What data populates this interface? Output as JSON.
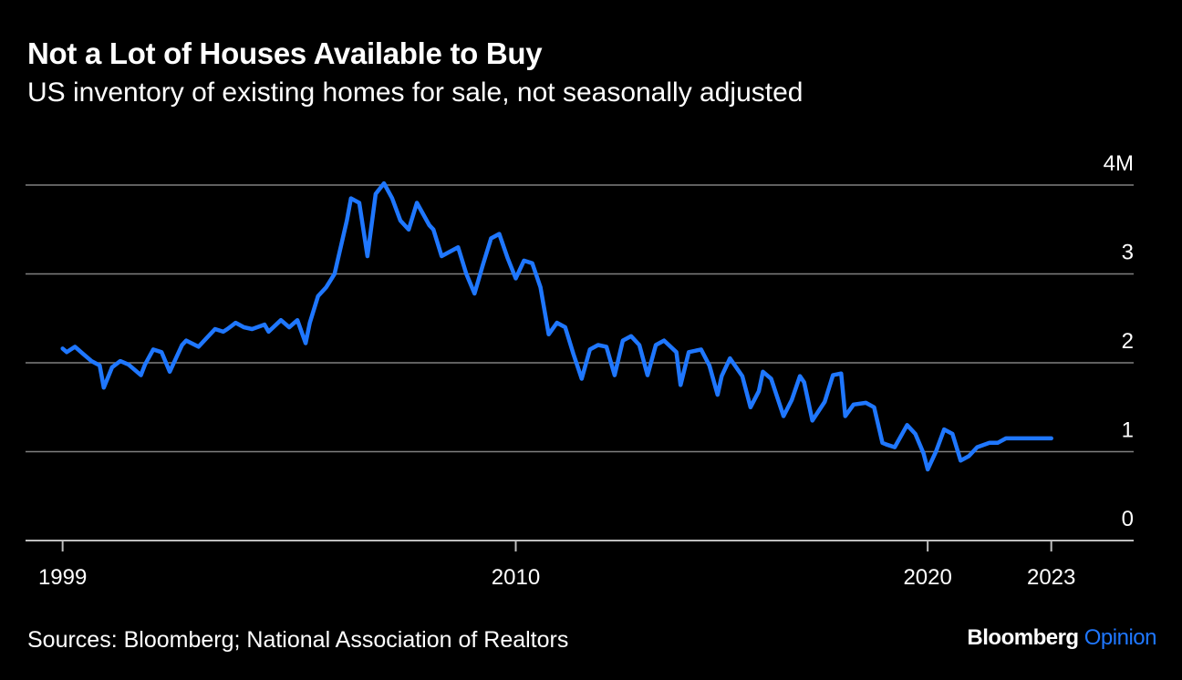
{
  "header": {
    "title": "Not a Lot of Houses Available to Buy",
    "subtitle": "US inventory of existing homes for sale, not seasonally adjusted"
  },
  "footer": {
    "source": "Sources: Bloomberg; National Association of Realtors",
    "brand_main": "Bloomberg",
    "brand_accent": "Opinion"
  },
  "colors": {
    "background": "#000000",
    "line": "#1f77ff",
    "grid": "#808080",
    "text": "#ffffff"
  },
  "chart_data": {
    "type": "line",
    "title": "Not a Lot of Houses Available to Buy",
    "subtitle": "US inventory of existing homes for sale, not seasonally adjusted",
    "xlabel": "",
    "ylabel": "",
    "x_ticks": [
      {
        "value": 1999,
        "label": "1999"
      },
      {
        "value": 2010,
        "label": "2010"
      },
      {
        "value": 2020,
        "label": "2020"
      },
      {
        "value": 2023,
        "label": "2023"
      }
    ],
    "y_ticks": [
      {
        "value": 0,
        "label": "0"
      },
      {
        "value": 1,
        "label": "1"
      },
      {
        "value": 2,
        "label": "2"
      },
      {
        "value": 3,
        "label": "3"
      },
      {
        "value": 4,
        "label": "4M"
      }
    ],
    "xlim": [
      1998.1,
      2025.0
    ],
    "ylim": [
      0,
      4
    ],
    "grid": true,
    "y_axis_position": "right",
    "series": [
      {
        "name": "",
        "color": "#1f77ff",
        "x": [
          1999.0,
          1999.1,
          1999.3,
          1999.5,
          1999.7,
          1999.9,
          2000.0,
          2000.2,
          2000.4,
          2000.6,
          2000.9,
          2001.0,
          2001.2,
          2001.4,
          2001.6,
          2001.9,
          2002.0,
          2002.3,
          2002.5,
          2002.7,
          2002.9,
          2003.0,
          2003.2,
          2003.4,
          2003.6,
          2003.9,
          2004.0,
          2004.3,
          2004.5,
          2004.7,
          2004.9,
          2005.0,
          2005.2,
          2005.4,
          2005.6,
          2005.9,
          2006.0,
          2006.2,
          2006.4,
          2006.6,
          2006.8,
          2007.0,
          2007.2,
          2007.4,
          2007.6,
          2007.9,
          2008.0,
          2008.2,
          2008.4,
          2008.6,
          2008.8,
          2009.0,
          2009.2,
          2009.4,
          2009.6,
          2009.8,
          2010.0,
          2010.2,
          2010.4,
          2010.6,
          2010.8,
          2011.0,
          2011.2,
          2011.4,
          2011.6,
          2011.8,
          2012.0,
          2012.2,
          2012.4,
          2012.6,
          2012.8,
          2013.0,
          2013.2,
          2013.4,
          2013.6,
          2013.9,
          2014.0,
          2014.2,
          2014.5,
          2014.7,
          2014.9,
          2015.0,
          2015.2,
          2015.5,
          2015.7,
          2015.9,
          2016.0,
          2016.2,
          2016.5,
          2016.7,
          2016.9,
          2017.0,
          2017.2,
          2017.5,
          2017.7,
          2017.9,
          2018.0,
          2018.2,
          2018.5,
          2018.7,
          2018.9,
          2019.0,
          2019.2,
          2019.5,
          2019.7,
          2019.9,
          2020.0,
          2020.2,
          2020.4,
          2020.6,
          2020.8,
          2021.0,
          2021.2,
          2021.5,
          2021.7,
          2021.9,
          2022.0,
          2022.2,
          2022.5,
          2022.7,
          2022.9,
          2023.0
        ],
        "y": [
          2.16,
          2.12,
          2.18,
          2.1,
          2.02,
          1.97,
          1.72,
          1.95,
          2.02,
          1.98,
          1.86,
          1.98,
          2.15,
          2.12,
          1.9,
          2.2,
          2.25,
          2.18,
          2.28,
          2.38,
          2.35,
          2.38,
          2.45,
          2.4,
          2.38,
          2.43,
          2.35,
          2.48,
          2.4,
          2.48,
          2.22,
          2.45,
          2.75,
          2.85,
          3.0,
          3.6,
          3.85,
          3.8,
          3.2,
          3.9,
          4.02,
          3.85,
          3.6,
          3.5,
          3.8,
          3.55,
          3.5,
          3.2,
          3.25,
          3.3,
          3.0,
          2.78,
          3.1,
          3.4,
          3.45,
          3.18,
          2.95,
          3.15,
          3.12,
          2.85,
          2.32,
          2.45,
          2.4,
          2.1,
          1.82,
          2.15,
          2.2,
          2.18,
          1.86,
          2.25,
          2.3,
          2.2,
          1.86,
          2.2,
          2.25,
          2.12,
          1.75,
          2.12,
          2.15,
          1.97,
          1.64,
          1.85,
          2.05,
          1.85,
          1.5,
          1.68,
          1.9,
          1.82,
          1.4,
          1.58,
          1.85,
          1.78,
          1.35,
          1.56,
          1.86,
          1.88,
          1.4,
          1.53,
          1.55,
          1.5,
          1.1,
          1.08,
          1.05,
          1.3,
          1.2,
          0.98,
          0.8,
          1.0,
          1.25,
          1.2,
          0.9,
          0.95,
          1.05,
          1.1,
          1.1,
          1.15,
          1.15,
          1.15,
          1.15,
          1.15,
          1.15,
          1.15
        ]
      }
    ]
  }
}
